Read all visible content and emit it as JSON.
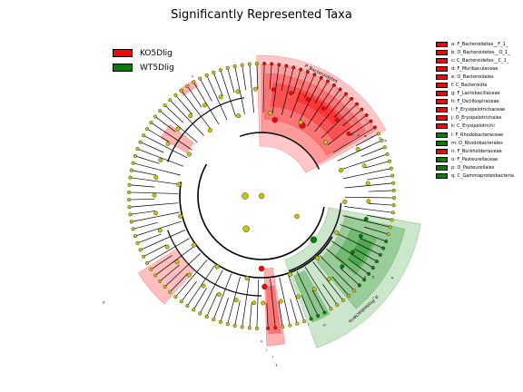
{
  "title": "Significantly Represented Taxa",
  "colors": {
    "KO5Dlig": "#ff0000",
    "WT5Dlig": "#008000",
    "node_neutral": "#c8c800"
  },
  "groups": [
    {
      "label": "KO5Dlig",
      "color": "#ff0000"
    },
    {
      "label": "WT5Dlig",
      "color": "#008000"
    }
  ],
  "taxa": [
    {
      "key": "a",
      "label": "a: F_Bacteroidetes__F_1_",
      "color": "#ff0000"
    },
    {
      "key": "b",
      "label": "b: O_Bacteroidetes__O_1_",
      "color": "#ff0000"
    },
    {
      "key": "c",
      "label": "c: C_Bacteroidetes__C_1_",
      "color": "#ff0000"
    },
    {
      "key": "d",
      "label": "d: F_Muribaculaceae",
      "color": "#ff0000"
    },
    {
      "key": "e",
      "label": "e: O_Bacteroidales",
      "color": "#ff0000"
    },
    {
      "key": "f",
      "label": "f: C_Bacteroidia",
      "color": "#ff0000"
    },
    {
      "key": "g",
      "label": "g: F_Lactobacillaceae",
      "color": "#ff0000"
    },
    {
      "key": "h",
      "label": "h: F_Oscillospiraceae",
      "color": "#ff0000"
    },
    {
      "key": "i",
      "label": "i: F_Erysipelotrichaceae",
      "color": "#ff0000"
    },
    {
      "key": "j",
      "label": "j: O_Erysipelotrichales",
      "color": "#ff0000"
    },
    {
      "key": "k",
      "label": "k: C_Erysipelotrichi",
      "color": "#ff0000"
    },
    {
      "key": "l",
      "label": "l: F_Rhodobacteraceae",
      "color": "#008000"
    },
    {
      "key": "m",
      "label": "m: O_Rhodobacterales",
      "color": "#008000"
    },
    {
      "key": "n",
      "label": "n: F_Burkholderiaceae",
      "color": "#ff0000"
    },
    {
      "key": "o",
      "label": "o: F_Pasteurellaceae",
      "color": "#008000"
    },
    {
      "key": "p",
      "label": "p: O_Pasteurellales",
      "color": "#008000"
    },
    {
      "key": "q",
      "label": "q: C_Gammaproteobacteria",
      "color": "#008000"
    }
  ],
  "sector_labels": {
    "bacteroidetes": "P_Bacteroidetes",
    "proteobacteria": "p_Proteobacteria"
  },
  "ring_letters": [
    "a",
    "b",
    "c",
    "d",
    "e",
    "f",
    "g",
    "h",
    "i",
    "j",
    "k",
    "l",
    "m",
    "n",
    "o",
    "p",
    "q"
  ]
}
